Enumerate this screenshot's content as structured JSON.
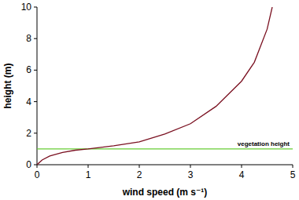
{
  "chart_data": {
    "type": "line",
    "x_label": "wind speed (m s⁻¹)",
    "y_label": "height (m)",
    "xlim": [
      0,
      5
    ],
    "xticks": [
      0,
      1,
      2,
      3,
      4,
      5
    ],
    "ylim": [
      0,
      10
    ],
    "yticks": [
      0,
      2,
      4,
      6,
      8,
      10
    ],
    "grid": false,
    "series": [
      {
        "color": "#7a1020",
        "x": [
          0,
          0.05,
          0.1,
          0.25,
          0.5,
          0.75,
          1,
          1.5,
          2,
          2.5,
          3,
          3.5,
          4,
          4.25,
          4.5,
          4.6
        ],
        "values": [
          0,
          0.15,
          0.3,
          0.55,
          0.78,
          0.92,
          1,
          1.2,
          1.45,
          1.95,
          2.6,
          3.7,
          5.3,
          6.5,
          8.6,
          10
        ]
      },
      {
        "name": "vegetation height",
        "color": "#66cc33",
        "x": [
          0,
          5
        ],
        "values": [
          1,
          1
        ]
      }
    ]
  }
}
